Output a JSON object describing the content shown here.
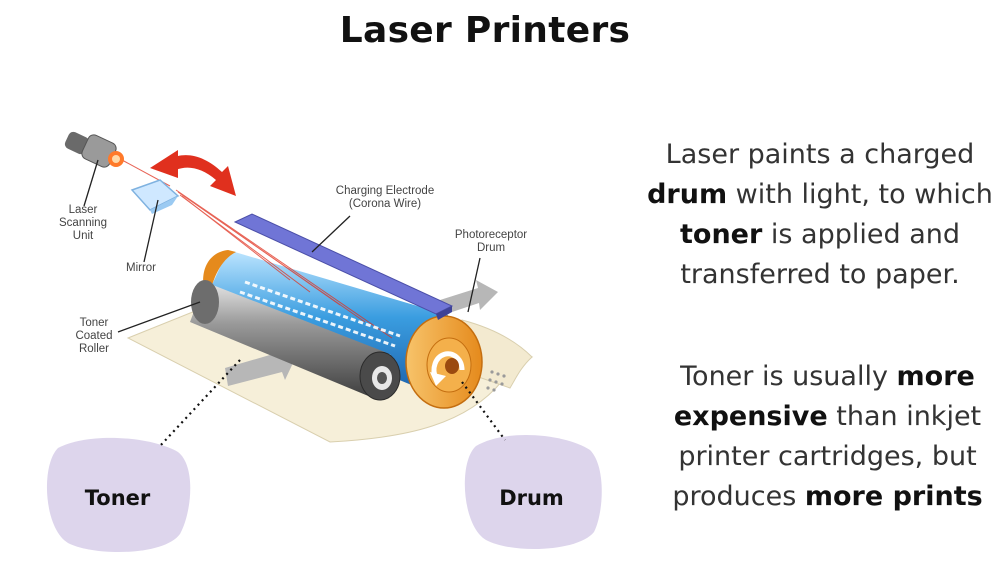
{
  "title": "Laser Printers",
  "paragraph1": {
    "t1": "Laser paints a charged",
    "b1": "drum",
    "t2": " with light, to which",
    "b2": "toner",
    "t3": " is applied and transferred to paper."
  },
  "paragraph2": {
    "t1": "Toner is usually ",
    "b1": "more expensive",
    "t2": " than inkjet printer cartridges, but produces ",
    "b2": "more prints"
  },
  "diagram_labels": {
    "laser_unit": [
      "Laser",
      "Scanning",
      "Unit"
    ],
    "mirror": "Mirror",
    "electrode": [
      "Charging Electrode",
      "(Corona Wire)"
    ],
    "drum": [
      "Photoreceptor",
      "Drum"
    ],
    "roller": [
      "Toner",
      "Coated",
      "Roller"
    ]
  },
  "callouts": {
    "toner": "Toner",
    "drum": "Drum"
  },
  "colors": {
    "blob": "#ddd5ec",
    "arrow_red": "#e0301e",
    "drum_orange": "#f3a53c",
    "drum_blue": "#3a9de0",
    "wire_purple": "#5a5fc4",
    "paper": "#f6efd9"
  }
}
